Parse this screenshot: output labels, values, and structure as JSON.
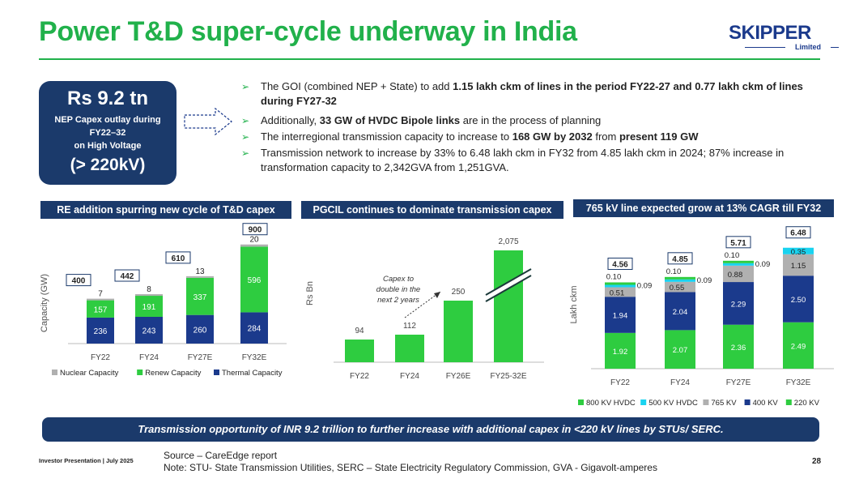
{
  "title": "Power T&D super-cycle underway in India",
  "logo": {
    "word": "SKIPPER",
    "sub": "Limited"
  },
  "capex_box": {
    "amount": "Rs 9.2 tn",
    "line1": "NEP Capex outlay during",
    "line2": "FY22–32",
    "line3": "on High Voltage",
    "voltage": "(> 220kV)"
  },
  "bullets": [
    {
      "pre": "The GOI (combined NEP + State) to add ",
      "b1": "1.15 lakh ckm of lines in the period FY22-27 and 0.77 lakh ckm of lines during FY27-32",
      "mid": "",
      "b2": "",
      "post": ""
    },
    {
      "pre": "Additionally, ",
      "b1": "33 GW of HVDC Bipole links",
      "mid": " are in the process of planning",
      "b2": "",
      "post": ""
    },
    {
      "pre": "The interregional transmission capacity to increase to ",
      "b1": "168 GW by 2032",
      "mid": " from ",
      "b2": "present 119 GW",
      "post": ""
    },
    {
      "pre": "Transmission network to increase by 33% to 6.48 lakh ckm in FY32 from 4.85 lakh ckm in 2024; 87% increase in transformation capacity to 2,342GVA from 1,251GVA.",
      "b1": "",
      "mid": "",
      "b2": "",
      "post": ""
    }
  ],
  "chart1": {
    "heading": "RE addition spurring new cycle of T&D capex",
    "chart_data": {
      "type": "bar",
      "stacked": true,
      "categories": [
        "FY22",
        "FY24",
        "FY27E",
        "FY32E"
      ],
      "ylabel": "Capacity (GW)",
      "series": [
        {
          "name": "Thermal Capacity",
          "values": [
            236,
            243,
            260,
            284
          ],
          "color": "#1b3a8c"
        },
        {
          "name": "Renew Capacity",
          "values": [
            157,
            191,
            337,
            596
          ],
          "color": "#2ecc40"
        },
        {
          "name": "Nuclear Capacity",
          "values": [
            7,
            8,
            13,
            20
          ],
          "color": "#b0b0b0"
        }
      ],
      "totals": [
        "400",
        "442",
        "610",
        "900"
      ],
      "ylim": [
        0,
        920
      ]
    }
  },
  "chart2": {
    "heading": "PGCIL continues to dominate transmission capex",
    "chart_data": {
      "type": "bar",
      "categories": [
        "FY22",
        "FY24",
        "FY26E",
        "FY25-32E"
      ],
      "values": [
        94,
        112,
        250,
        2075
      ],
      "labels": [
        "94",
        "112",
        "250",
        "2,075"
      ],
      "ylabel": "Rs Bn",
      "annotation": "Capex to double in the next 2 years",
      "axis_break": true,
      "color": "#2ecc40"
    }
  },
  "chart3": {
    "heading": "765 kV  line expected grow at 13% CAGR till FY32",
    "chart_data": {
      "type": "bar",
      "stacked": true,
      "categories": [
        "FY22",
        "FY24",
        "FY27E",
        "FY32E"
      ],
      "ylabel": "Lakh ckm",
      "series": [
        {
          "name": "220 KV",
          "values": [
            1.92,
            2.07,
            2.36,
            2.49
          ],
          "color": "#2ecc40"
        },
        {
          "name": "400 KV",
          "values": [
            1.94,
            2.04,
            2.29,
            2.5
          ],
          "color": "#1b3a8c"
        },
        {
          "name": "765 KV",
          "values": [
            0.51,
            0.55,
            0.88,
            1.15
          ],
          "color": "#b0b0b0"
        },
        {
          "name": "500 KV HVDC",
          "values": [
            0.09,
            0.09,
            0.09,
            0.35
          ],
          "color": "#19d3f0"
        },
        {
          "name": "800 KV HVDC",
          "values": [
            0.1,
            0.1,
            0.1,
            0.0
          ],
          "color": "#2ecc40"
        }
      ],
      "totals": [
        "4.56",
        "4.85",
        "5.71",
        "6.48"
      ],
      "legend_order": [
        "800 KV HVDC",
        "500 KV HVDC",
        "765 KV",
        "400 KV",
        "220 KV"
      ],
      "ylim": [
        0,
        6.7
      ]
    }
  },
  "banner": "Transmission opportunity of INR 9.2 trillion to further increase with additional capex in <220 kV lines  by STUs/ SERC.",
  "footer": {
    "left": "Investor Presentation | July 2025",
    "source": "Source – CareEdge report",
    "note": "Note: STU- State Transmission Utilities, SERC – State Electricity Regulatory Commission, GVA -  Gigavolt-amperes",
    "page": "28"
  },
  "colors": {
    "green": "#21b14b",
    "navy": "#1b3a6b"
  }
}
